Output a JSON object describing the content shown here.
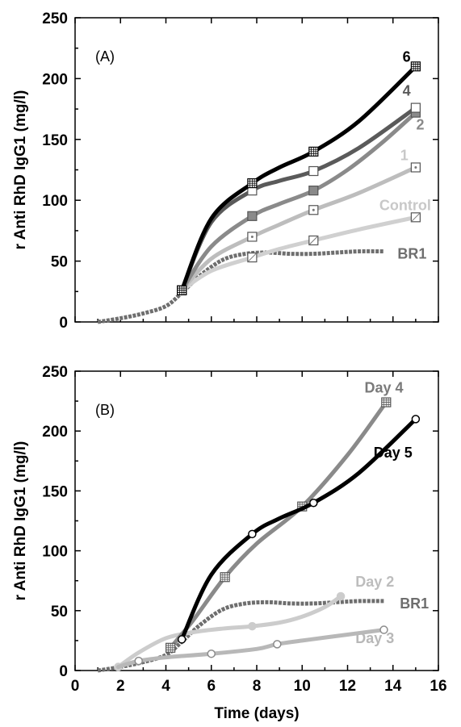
{
  "chart_data": [
    {
      "type": "line",
      "panel_label": "(A)",
      "xlabel": "",
      "ylabel": "r Anti RhD IgG1 (mg/l)",
      "xlim": [
        0,
        16
      ],
      "ylim": [
        0,
        250
      ],
      "yticks": [
        0,
        50,
        100,
        150,
        200,
        250
      ],
      "xticks": [],
      "grid": false,
      "series": [
        {
          "name": "BR1",
          "color": "#6e6e6e",
          "width": 5,
          "dashed": true,
          "marker": "none",
          "label_x": 14.2,
          "label_y": 52,
          "label_color": "#6e6e6e",
          "label_anchor": "start",
          "x": [
            1,
            2,
            3,
            4,
            4.7,
            5.5,
            6.5,
            7.5,
            8.5,
            9.5,
            10.5,
            11.5,
            12.5,
            13.6
          ],
          "y": [
            0,
            3,
            7,
            13,
            24,
            38,
            51,
            56,
            57,
            56,
            56,
            57,
            58,
            58
          ]
        },
        {
          "name": "Control",
          "color": "#d0d0d0",
          "width": 5,
          "dashed": false,
          "marker": "box-slash",
          "label_x": 13.4,
          "label_y": 92,
          "label_color": "#c8c8c8",
          "label_anchor": "start",
          "x": [
            4.7,
            6,
            7.8,
            9,
            10.5,
            12.5,
            15
          ],
          "y": [
            26,
            42,
            53,
            60,
            67,
            76,
            86
          ]
        },
        {
          "name": "1",
          "color": "#bdbdbd",
          "width": 5,
          "dashed": false,
          "marker": "box-dot",
          "label_x": 14.5,
          "label_y": 133,
          "label_color": "#c8c8c8",
          "label_anchor": "middle",
          "x": [
            4.7,
            6,
            7.8,
            9,
            10.5,
            12.5,
            15
          ],
          "y": [
            26,
            52,
            70,
            80,
            92,
            106,
            127
          ]
        },
        {
          "name": "2",
          "color": "#8a8a8a",
          "width": 5,
          "dashed": false,
          "marker": "box-filled",
          "label_x": 15.2,
          "label_y": 158,
          "label_color": "#8a8a8a",
          "label_anchor": "middle",
          "x": [
            4.7,
            6,
            7.8,
            9,
            10.5,
            12,
            13.5,
            15
          ],
          "y": [
            26,
            62,
            87,
            97,
            108,
            125,
            147,
            172
          ]
        },
        {
          "name": "4",
          "color": "#5a5a5a",
          "width": 5,
          "dashed": false,
          "marker": "box",
          "label_x": 14.6,
          "label_y": 186,
          "label_color": "#5a5a5a",
          "label_anchor": "middle",
          "x": [
            4.7,
            6,
            7.8,
            9,
            10.5,
            12.5,
            15
          ],
          "y": [
            26,
            82,
            108,
            116,
            124,
            143,
            176
          ]
        },
        {
          "name": "6",
          "color": "#000000",
          "width": 5,
          "dashed": false,
          "marker": "box-grid",
          "label_x": 14.6,
          "label_y": 214,
          "label_color": "#000000",
          "label_anchor": "middle",
          "x": [
            4.7,
            6,
            7.8,
            9,
            10.5,
            12.5,
            15
          ],
          "y": [
            26,
            85,
            114,
            127,
            140,
            165,
            210
          ]
        }
      ]
    },
    {
      "type": "line",
      "panel_label": "(B)",
      "xlabel": "Time (days)",
      "ylabel": "r Anti RhD IgG1 (mg/l)",
      "xlim": [
        0,
        16
      ],
      "ylim": [
        0,
        250
      ],
      "yticks": [
        0,
        50,
        100,
        150,
        200,
        250
      ],
      "xticks": [
        0,
        2,
        4,
        6,
        8,
        10,
        12,
        14,
        16
      ],
      "grid": false,
      "series": [
        {
          "name": "BR1",
          "color": "#6e6e6e",
          "width": 5,
          "dashed": true,
          "marker": "none",
          "label_x": 14.3,
          "label_y": 52,
          "label_color": "#6e6e6e",
          "label_anchor": "start",
          "x": [
            1,
            2,
            3,
            4,
            4.7,
            5.5,
            6.5,
            7.5,
            8.5,
            9.5,
            10.5,
            11.5,
            12.5,
            13.6
          ],
          "y": [
            0,
            3,
            7,
            13,
            24,
            38,
            51,
            56,
            57,
            56,
            56,
            57,
            58,
            58
          ]
        },
        {
          "name": "Day 2",
          "color": "#cccccc",
          "width": 5,
          "dashed": false,
          "marker": "circle-filled",
          "label_x": 13.2,
          "label_y": 70,
          "label_color": "#bdbdbd",
          "label_anchor": "middle",
          "x": [
            1.9,
            2.8,
            4,
            5.2,
            6.5,
            7.8,
            9,
            10,
            11,
            11.7
          ],
          "y": [
            3,
            15,
            27,
            32,
            35,
            37,
            40,
            45,
            53,
            62
          ]
        },
        {
          "name": "Day 3",
          "color": "#b8b8b8",
          "width": 5,
          "dashed": false,
          "marker": "circle-open",
          "label_x": 13.2,
          "label_y": 23,
          "label_color": "#b8b8b8",
          "label_anchor": "middle",
          "x": [
            1.9,
            2.8,
            4,
            6,
            8,
            8.9,
            10,
            12,
            13.6
          ],
          "y": [
            3,
            8,
            11,
            14,
            18,
            22,
            25,
            30,
            34
          ]
        },
        {
          "name": "Day 4",
          "color": "#8a8a8a",
          "width": 5,
          "dashed": false,
          "marker": "box-grid",
          "label_x": 13.6,
          "label_y": 232,
          "label_color": "#7a7a7a",
          "label_anchor": "middle",
          "x": [
            4.2,
            5.2,
            6.6,
            8,
            10,
            12,
            13.7
          ],
          "y": [
            19,
            42,
            78,
            106,
            137,
            180,
            224
          ]
        },
        {
          "name": "Day 5",
          "color": "#000000",
          "width": 5,
          "dashed": false,
          "marker": "circle-open",
          "label_x": 14.0,
          "label_y": 178,
          "label_color": "#000000",
          "label_anchor": "middle",
          "x": [
            4.7,
            6,
            7.8,
            9,
            10.5,
            12.5,
            15
          ],
          "y": [
            26,
            80,
            114,
            127,
            140,
            165,
            210
          ]
        }
      ]
    }
  ]
}
